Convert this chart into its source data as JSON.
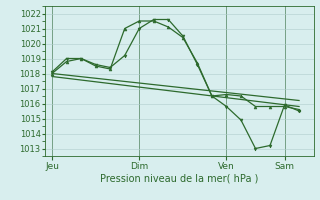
{
  "background_color": "#d8eeee",
  "grid_color": "#b0cccc",
  "line_color": "#2d6a2d",
  "marker_color": "#2d6a2d",
  "xlabel": "Pression niveau de la mer( hPa )",
  "ylim": [
    1012.5,
    1022.5
  ],
  "yticks": [
    1013,
    1014,
    1015,
    1016,
    1017,
    1018,
    1019,
    1020,
    1021,
    1022
  ],
  "xtick_labels": [
    "Jeu",
    "Dim",
    "Ven",
    "Sam"
  ],
  "xtick_positions": [
    1,
    13,
    25,
    33
  ],
  "xmin": 0,
  "xmax": 37,
  "series1_x": [
    1,
    3,
    5,
    7,
    9,
    11,
    13,
    15,
    17,
    19,
    21,
    23,
    25,
    27,
    29,
    31,
    33,
    35
  ],
  "series1_y": [
    1018.0,
    1018.8,
    1019.0,
    1018.5,
    1018.3,
    1021.0,
    1021.5,
    1021.5,
    1021.1,
    1020.4,
    1018.7,
    1016.5,
    1016.6,
    1016.5,
    1015.8,
    1015.8,
    1015.8,
    1015.6
  ],
  "series2_x": [
    1,
    3,
    5,
    7,
    9,
    11,
    13,
    15,
    17,
    19,
    21,
    23,
    25,
    27,
    29,
    31,
    33,
    35
  ],
  "series2_y": [
    1018.1,
    1019.0,
    1019.0,
    1018.6,
    1018.4,
    1019.2,
    1021.0,
    1021.6,
    1021.6,
    1020.5,
    1018.6,
    1016.5,
    1015.8,
    1014.9,
    1013.0,
    1013.2,
    1015.9,
    1015.5
  ],
  "series3_x": [
    1,
    35
  ],
  "series3_y": [
    1018.0,
    1016.2
  ],
  "series4_x": [
    1,
    35
  ],
  "series4_y": [
    1017.8,
    1015.8
  ],
  "vline_x": [
    1,
    13,
    25,
    33
  ]
}
